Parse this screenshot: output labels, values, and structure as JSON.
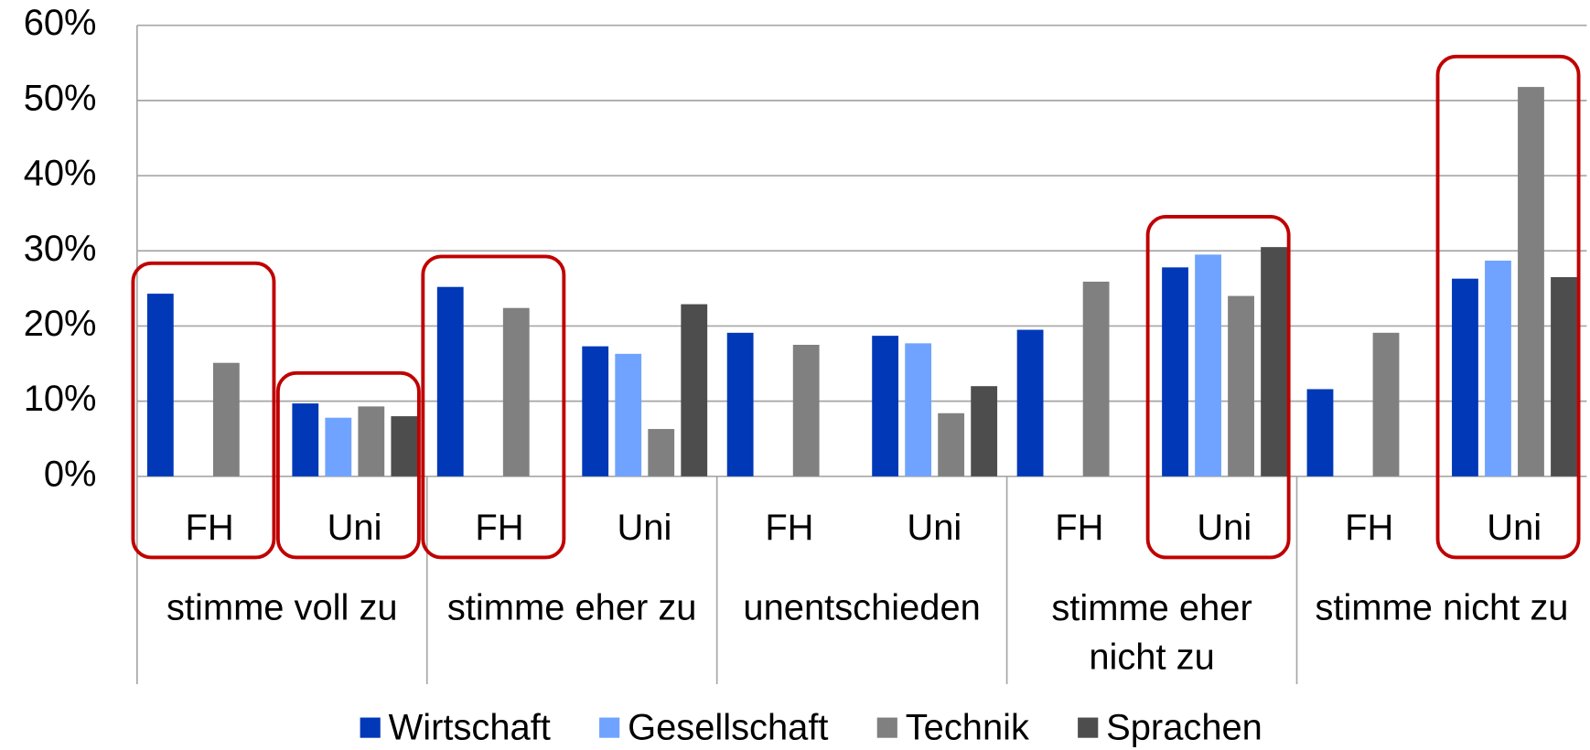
{
  "chart_data": {
    "type": "bar",
    "categories": [
      "FH",
      "Uni",
      "FH",
      "Uni",
      "FH",
      "Uni",
      "FH",
      "Uni",
      "FH",
      "Uni"
    ],
    "category_groups": [
      "stimme voll zu",
      "stimme eher zu",
      "unentschieden",
      "stimme eher nicht zu",
      "stimme nicht zu"
    ],
    "series": [
      {
        "name": "Wirtschaft",
        "color": "#0038b8",
        "values": [
          24.3,
          9.7,
          25.2,
          17.3,
          19.1,
          18.7,
          19.5,
          27.8,
          11.6,
          26.3
        ]
      },
      {
        "name": "Gesellschaft",
        "color": "#6fa3ff",
        "values": [
          null,
          7.8,
          null,
          16.3,
          null,
          17.7,
          null,
          29.5,
          null,
          28.7
        ]
      },
      {
        "name": "Technik",
        "color": "#808080",
        "values": [
          15.1,
          9.3,
          22.4,
          6.3,
          17.5,
          8.4,
          25.9,
          24.0,
          19.1,
          51.8
        ]
      },
      {
        "name": "Sprachen",
        "color": "#4d4d4d",
        "values": [
          null,
          8.0,
          null,
          22.9,
          null,
          12.0,
          null,
          30.5,
          null,
          26.5
        ]
      }
    ],
    "ylim": [
      0,
      60
    ],
    "yticks": [
      {
        "value": 0,
        "label": "0%"
      },
      {
        "value": 10,
        "label": "10%"
      },
      {
        "value": 20,
        "label": "20%"
      },
      {
        "value": 30,
        "label": "30%"
      },
      {
        "value": 40,
        "label": "40%"
      },
      {
        "value": 50,
        "label": "50%"
      },
      {
        "value": 60,
        "label": "60%"
      }
    ],
    "grid": true,
    "legend": "bottom",
    "highlighted_categories": [
      0,
      1,
      2,
      7,
      9
    ],
    "highlight_color": "#c00000"
  }
}
